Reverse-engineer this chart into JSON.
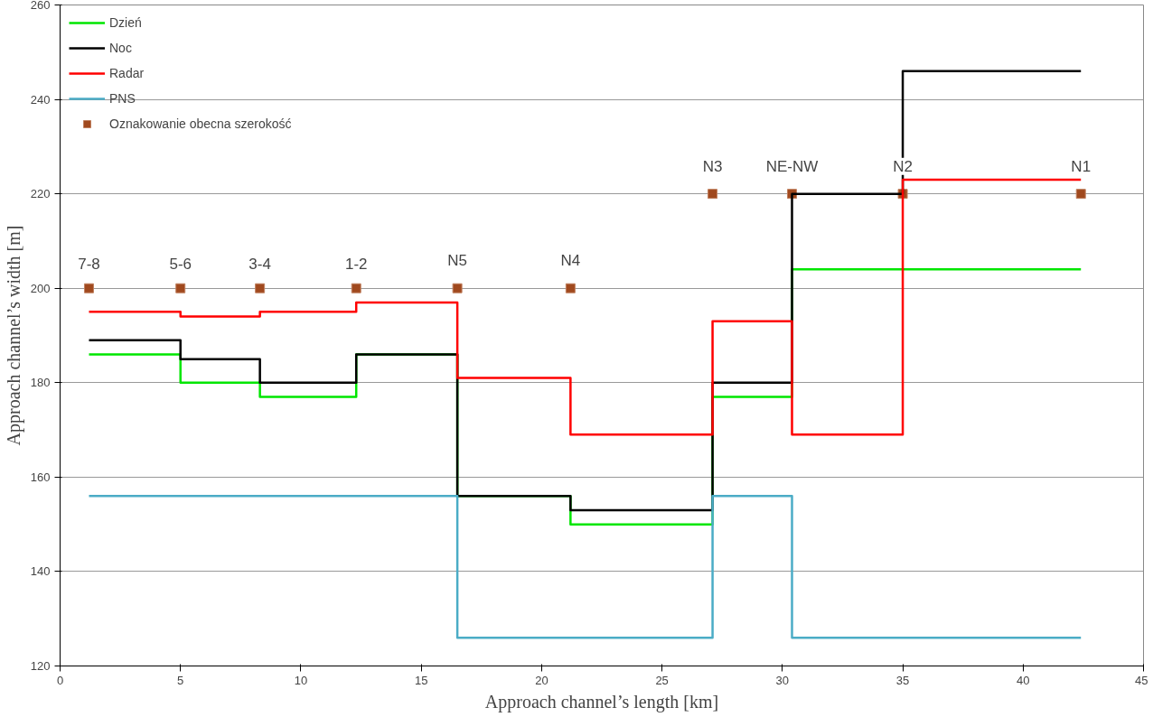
{
  "chart_data": {
    "type": "step",
    "xlabel": "Approach channel’s length [km]",
    "ylabel": "Approach channel’s width [m]",
    "xlim": [
      0,
      45
    ],
    "xticks": [
      0,
      5,
      10,
      15,
      20,
      25,
      30,
      35,
      40,
      45
    ],
    "ylim": [
      120,
      260
    ],
    "yticks": [
      120,
      140,
      160,
      180,
      200,
      220,
      240,
      260
    ],
    "grid": "y",
    "legend": "top left",
    "line_style": "solid",
    "x": [
      1.2,
      5,
      8.3,
      12.3,
      16.5,
      21.2,
      27.1,
      30.4,
      35,
      42.4
    ],
    "series": [
      {
        "name": "Dzień",
        "color": "#00e600",
        "values": [
          186,
          180,
          177,
          186,
          156,
          150,
          177,
          204,
          204,
          204
        ]
      },
      {
        "name": "Noc",
        "color": "#000000",
        "values": [
          189,
          185,
          180,
          186,
          156,
          153,
          180,
          220,
          246,
          246
        ]
      },
      {
        "name": "Radar",
        "color": "#ff0000",
        "values": [
          195,
          194,
          195,
          197,
          181,
          169,
          193,
          169,
          223,
          223
        ]
      },
      {
        "name": "PNS",
        "color": "#4bacc6",
        "values": [
          156,
          156,
          156,
          156,
          126,
          126,
          156,
          126,
          126,
          126
        ]
      },
      {
        "name": "Oznakowanie obecna szerokość",
        "type": "scatter",
        "marker": "square",
        "color": "#a0491e",
        "values": [
          200,
          200,
          200,
          200,
          200,
          200,
          220,
          220,
          220,
          220
        ],
        "value_labels": [
          "7-8",
          "5-6",
          "3-4",
          "1-2",
          "N5",
          "N4",
          "N3",
          "NE-NW",
          "N2",
          "N1"
        ]
      }
    ]
  }
}
